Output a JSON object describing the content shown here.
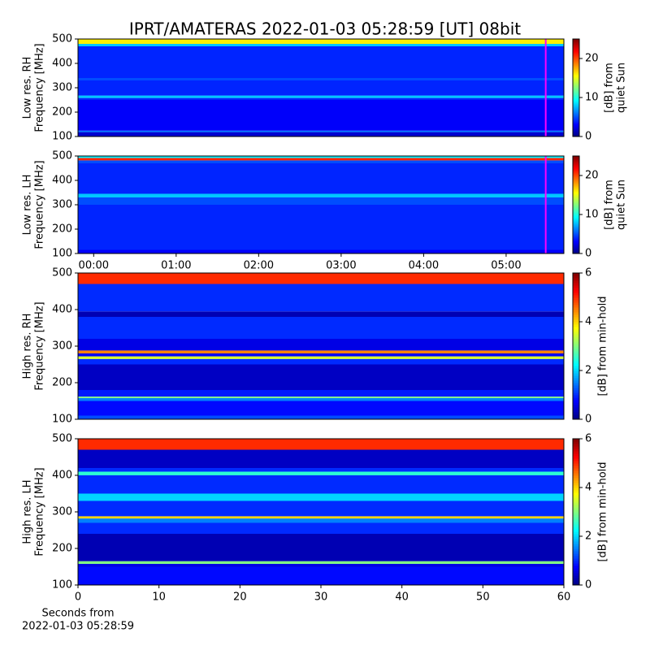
{
  "title": "IPRT/AMATERAS 2022-01-03 05:28:59 [UT]   08bit",
  "chart_data": [
    {
      "type": "heatmap",
      "ylabel": [
        "Low res. RH",
        "Frequency [MHz]"
      ],
      "colormap": "jet",
      "xlim": [
        -0.19,
        5.7
      ],
      "ylim": [
        100,
        500
      ],
      "yticks": [
        100,
        200,
        300,
        400,
        500
      ],
      "ybins": [
        100,
        118,
        124,
        250,
        258,
        268,
        330,
        340,
        470,
        480,
        500
      ],
      "values": [
        2,
        6,
        3,
        4,
        8,
        4,
        5,
        4,
        8,
        16
      ],
      "clim": [
        0,
        25
      ],
      "cticks": [
        0,
        10,
        20
      ],
      "clabel": [
        "[dB] from",
        "quiet Sun"
      ],
      "vline": 5.48,
      "vline_color": "#ff00ff"
    },
    {
      "type": "heatmap",
      "ylabel": [
        "Low res. LH",
        "Frequency [MHz]"
      ],
      "colormap": "jet",
      "xlim": [
        -0.19,
        5.7
      ],
      "ylim": [
        100,
        500
      ],
      "yticks": [
        100,
        200,
        300,
        400,
        500
      ],
      "xticks": [
        {
          "value": 0,
          "label": "00:00"
        },
        {
          "value": 1,
          "label": "01:00"
        },
        {
          "value": 2,
          "label": "02:00"
        },
        {
          "value": 3,
          "label": "03:00"
        },
        {
          "value": 4,
          "label": "04:00"
        },
        {
          "value": 5,
          "label": "05:00"
        }
      ],
      "ybins": [
        100,
        115,
        300,
        330,
        345,
        470,
        482,
        492,
        500
      ],
      "values": [
        3,
        4,
        5,
        8,
        4,
        5,
        21,
        9
      ],
      "clim": [
        0,
        25
      ],
      "cticks": [
        0,
        10,
        20
      ],
      "clabel": [
        "[dB] from",
        "quiet Sun"
      ],
      "vline": 5.48,
      "vline_color": "#ff00ff"
    },
    {
      "type": "heatmap",
      "ylabel": [
        "High res. RH",
        "Frequency [MHz]"
      ],
      "colormap": "jet",
      "xlim": [
        0,
        60
      ],
      "ylim": [
        100,
        500
      ],
      "yticks": [
        100,
        200,
        300,
        400,
        500
      ],
      "ybins": [
        100,
        110,
        150,
        158,
        162,
        180,
        250,
        265,
        272,
        280,
        288,
        320,
        380,
        395,
        470,
        500
      ],
      "values": [
        1.2,
        0.8,
        1.5,
        3,
        0.9,
        0.4,
        1.0,
        3.5,
        0.7,
        4.5,
        0.6,
        1.0,
        0.3,
        1.0,
        5
      ],
      "clim": [
        0,
        6
      ],
      "cticks": [
        0,
        2,
        4,
        6
      ],
      "clabel": [
        "[dB] from min-hold"
      ]
    },
    {
      "type": "heatmap",
      "ylabel": [
        "High res. LH",
        "Frequency [MHz]"
      ],
      "colormap": "jet",
      "xlim": [
        0,
        60
      ],
      "ylim": [
        100,
        500
      ],
      "yticks": [
        100,
        200,
        300,
        400,
        500
      ],
      "xticks": [
        0,
        10,
        20,
        30,
        40,
        50,
        60
      ],
      "xlabel": [
        "Seconds from",
        "2022-01-03 05:28:59"
      ],
      "ybins": [
        100,
        150,
        158,
        165,
        240,
        270,
        282,
        288,
        330,
        350,
        400,
        410,
        420,
        470,
        500
      ],
      "values": [
        0.8,
        0.6,
        3,
        0.3,
        1.0,
        1.5,
        4,
        1.0,
        2,
        1.0,
        2.5,
        1.0,
        0.4,
        5
      ],
      "clim": [
        0,
        6
      ],
      "cticks": [
        0,
        2,
        4,
        6
      ],
      "clabel": [
        "[dB] from min-hold"
      ]
    }
  ]
}
